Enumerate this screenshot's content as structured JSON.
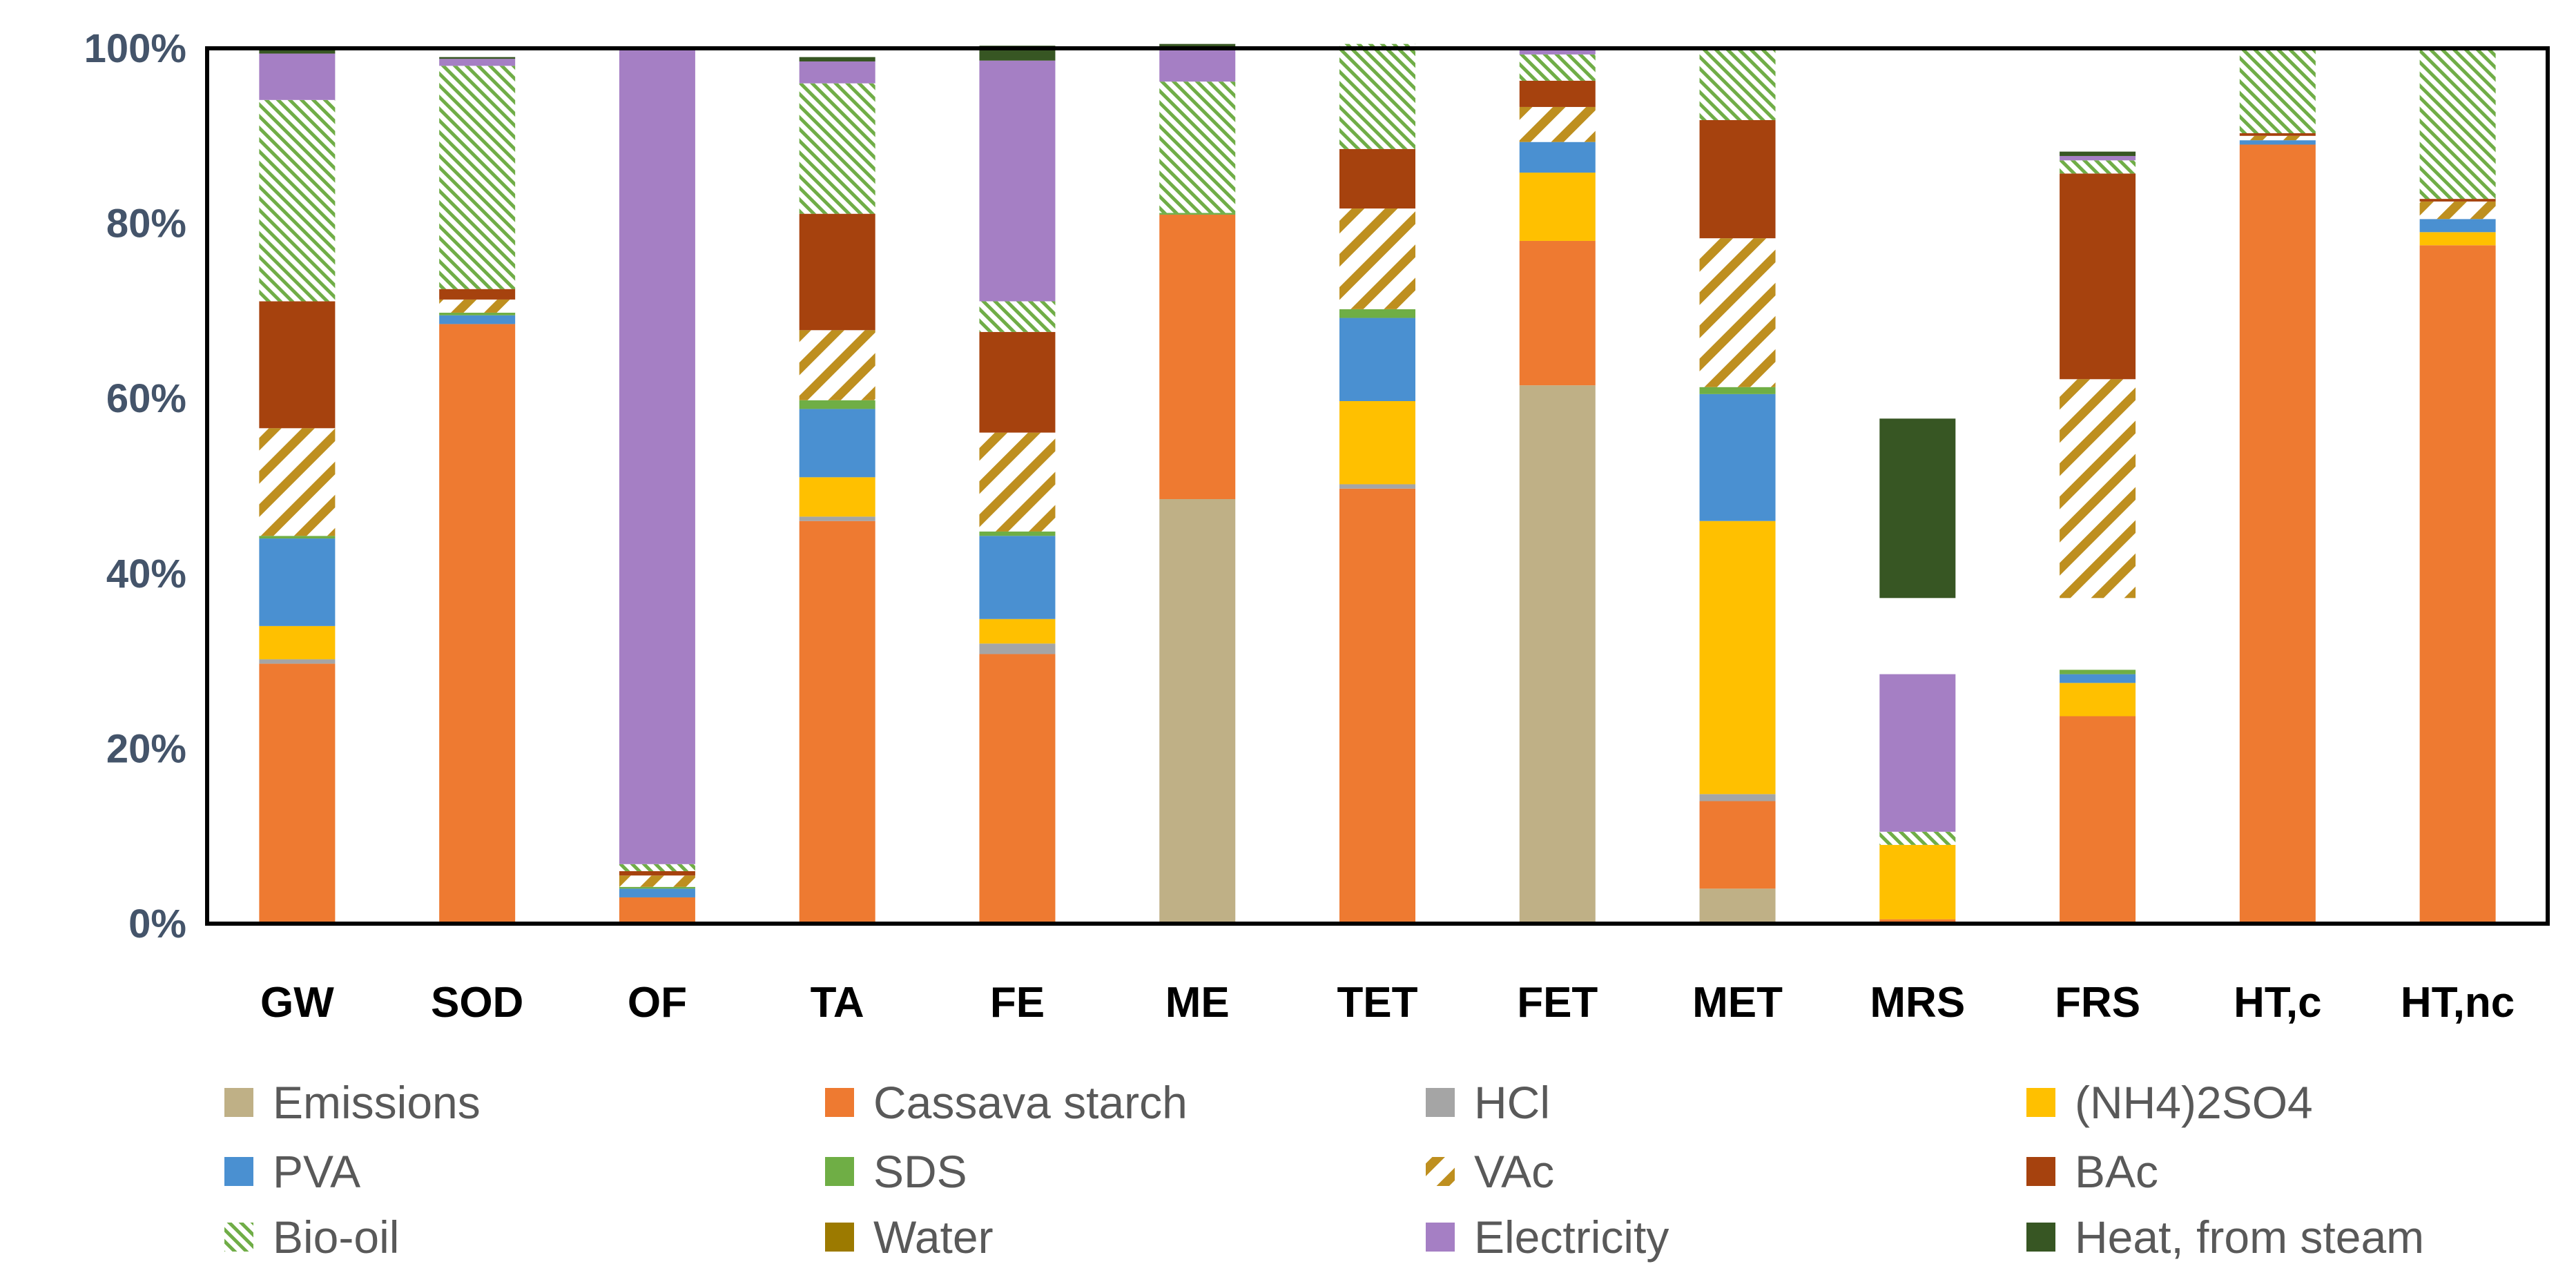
{
  "chart_data": {
    "type": "bar",
    "stacked": true,
    "percent": true,
    "title": "",
    "xlabel": "",
    "ylabel": "",
    "ylim": [
      0,
      100
    ],
    "yticks": [
      0,
      20,
      40,
      60,
      80,
      100
    ],
    "ytick_labels": [
      "0%",
      "20%",
      "40%",
      "60%",
      "80%",
      "100%"
    ],
    "grid": false,
    "legend_position": "bottom",
    "categories": [
      "GW",
      "SOD",
      "OF",
      "TA",
      "FE",
      "ME",
      "TET",
      "FET",
      "MET",
      "MRS",
      "FRS",
      "HT,c",
      "HT,nc"
    ],
    "series": [
      {
        "name": "Emissions",
        "color": "#BFB086",
        "pattern": "solid",
        "values": [
          0,
          0,
          0,
          0,
          0,
          48.5,
          0,
          61.5,
          4,
          0,
          0,
          0,
          0
        ]
      },
      {
        "name": "Cassava starch",
        "color": "#EE7A31",
        "pattern": "solid",
        "values": [
          29.7,
          68.5,
          3,
          46,
          30.8,
          32.5,
          49.7,
          16.5,
          10,
          0.5,
          23.7,
          89,
          77.5
        ]
      },
      {
        "name": "HCl",
        "color": "#A5A5A5",
        "pattern": "solid",
        "values": [
          0.5,
          0,
          0,
          0.5,
          1.2,
          0,
          0.5,
          0,
          0.8,
          0,
          0,
          0,
          0
        ]
      },
      {
        "name": "(NH4)2SO4",
        "color": "#FFC000",
        "pattern": "solid",
        "values": [
          3.8,
          0,
          0,
          4.5,
          2.8,
          0,
          9.5,
          7.8,
          31.2,
          8.5,
          3.8,
          0,
          1.5
        ]
      },
      {
        "name": "PVA",
        "color": "#4A90D1",
        "pattern": "solid",
        "values": [
          10,
          1,
          1,
          7.8,
          9.5,
          0,
          9.5,
          3.5,
          14.5,
          0,
          1,
          0.5,
          1.5
        ]
      },
      {
        "name": "SDS",
        "color": "#6FAE45",
        "pattern": "solid",
        "values": [
          0.3,
          0.3,
          0.2,
          1,
          0.5,
          0.2,
          1,
          0,
          0.8,
          0,
          0.5,
          0,
          0
        ]
      },
      {
        "name": "VAc",
        "color": "#BE8F1F",
        "pattern": "hatch",
        "values": [
          12.3,
          1.5,
          1.3,
          8,
          11.3,
          0,
          11.5,
          4,
          17,
          0,
          25,
          0.5,
          2
        ]
      },
      {
        "name": "BAc",
        "color": "#A6420E",
        "pattern": "solid",
        "values": [
          14.5,
          1.2,
          0.5,
          13.3,
          11.5,
          0,
          6.8,
          3,
          13.5,
          0,
          23.5,
          0.3,
          0.3
        ]
      },
      {
        "name": "Bio-oil",
        "color": "#70AD47",
        "pattern": "dots",
        "values": [
          23,
          25.5,
          0.8,
          14.9,
          3.5,
          15,
          12,
          3,
          8,
          1.5,
          1.5,
          9.7,
          17.2
        ]
      },
      {
        "name": "Water",
        "color": "#9C7A00",
        "pattern": "solid",
        "values": [
          0,
          0,
          0,
          0,
          0,
          0,
          0,
          0,
          0,
          0,
          0,
          0,
          0
        ]
      },
      {
        "name": "Electricity",
        "color": "#A57FC4",
        "pattern": "solid",
        "values": [
          5.3,
          0.8,
          93,
          2.5,
          27.5,
          3.8,
          0,
          0.7,
          0,
          18,
          0.5,
          0,
          0
        ]
      },
      {
        "name": "Heat, from steam",
        "color": "#375623",
        "pattern": "solid",
        "values": [
          0.6,
          0.2,
          0.2,
          0.5,
          1.7,
          0.5,
          0,
          0,
          0.2,
          20.5,
          0.5,
          0,
          0
        ]
      }
    ],
    "gaps": [
      {
        "category": "MRS",
        "from": 28.5,
        "to": 37.2
      },
      {
        "category": "FRS",
        "from": 28.7,
        "to": 37.2
      }
    ]
  }
}
